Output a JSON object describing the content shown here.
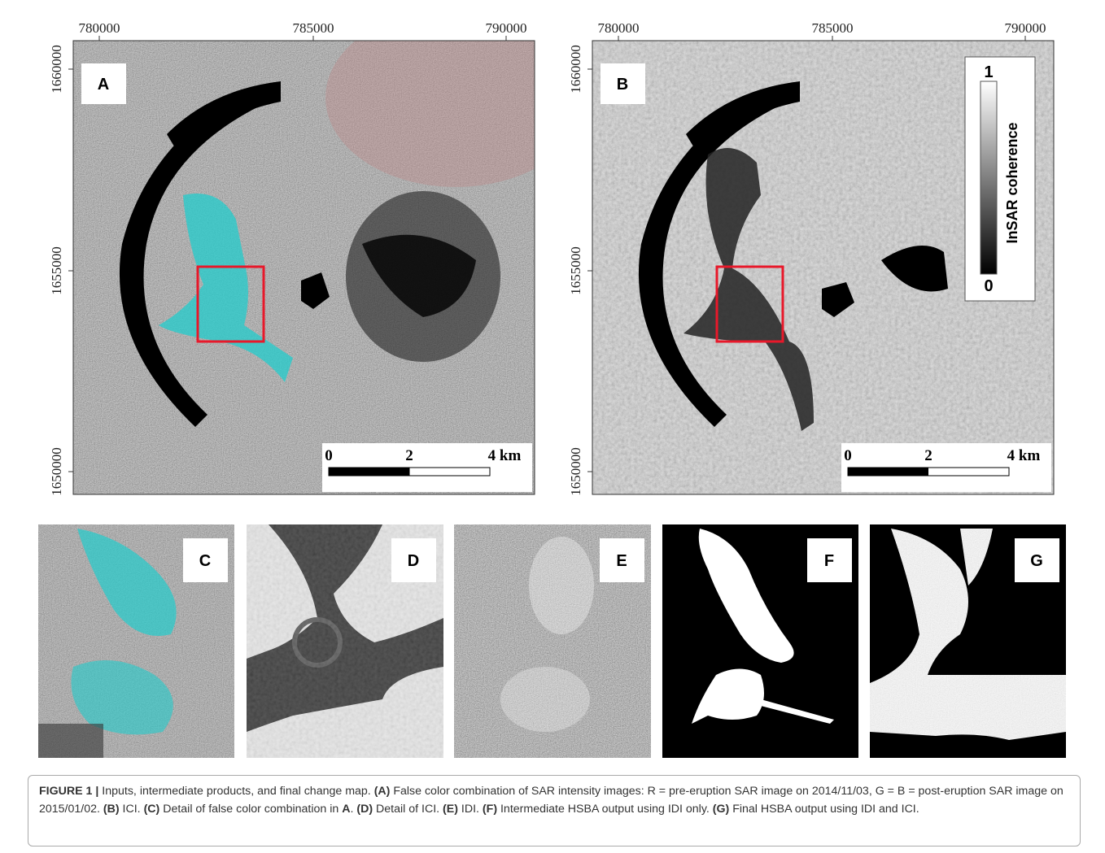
{
  "panels": {
    "A": {
      "label": "A",
      "x_ticks": [
        "780000",
        "785000",
        "790000"
      ],
      "y_ticks": [
        "1660000",
        "1655000",
        "1650000"
      ],
      "scale_bar": [
        "0",
        "2",
        "4 km"
      ]
    },
    "B": {
      "label": "B",
      "x_ticks": [
        "780000",
        "785000",
        "790000"
      ],
      "y_ticks": [
        "1660000",
        "1655000",
        "1650000"
      ],
      "scale_bar": [
        "0",
        "2",
        "4 km"
      ],
      "colorbar": {
        "max": "1",
        "min": "0",
        "title": "InSAR coherence"
      }
    },
    "C": {
      "label": "C"
    },
    "D": {
      "label": "D"
    },
    "E": {
      "label": "E"
    },
    "F": {
      "label": "F"
    },
    "G": {
      "label": "G"
    }
  },
  "caption": [
    {
      "text": "FIGURE 1 |",
      "bold": true
    },
    {
      "text": " Inputs, intermediate products, and final change map. ",
      "bold": false
    },
    {
      "text": "(A)",
      "bold": true
    },
    {
      "text": " False color combination of SAR intensity images: R = pre-eruption SAR image on 2014/11/03, G = B = post-eruption SAR image on 2015/01/02. ",
      "bold": false
    },
    {
      "text": "(B)",
      "bold": true
    },
    {
      "text": " ICI. ",
      "bold": false
    },
    {
      "text": "(C)",
      "bold": true
    },
    {
      "text": " Detail of false color combination in ",
      "bold": false
    },
    {
      "text": "A",
      "bold": true
    },
    {
      "text": ". ",
      "bold": false
    },
    {
      "text": "(D)",
      "bold": true
    },
    {
      "text": " Detail of ICI. ",
      "bold": false
    },
    {
      "text": "(E)",
      "bold": true
    },
    {
      "text": " IDI. ",
      "bold": false
    },
    {
      "text": "(F)",
      "bold": true
    },
    {
      "text": " Intermediate HSBA output using IDI only. ",
      "bold": false
    },
    {
      "text": "(G)",
      "bold": true
    },
    {
      "text": " Final HSBA output using IDI and ICI.",
      "bold": false
    }
  ]
}
